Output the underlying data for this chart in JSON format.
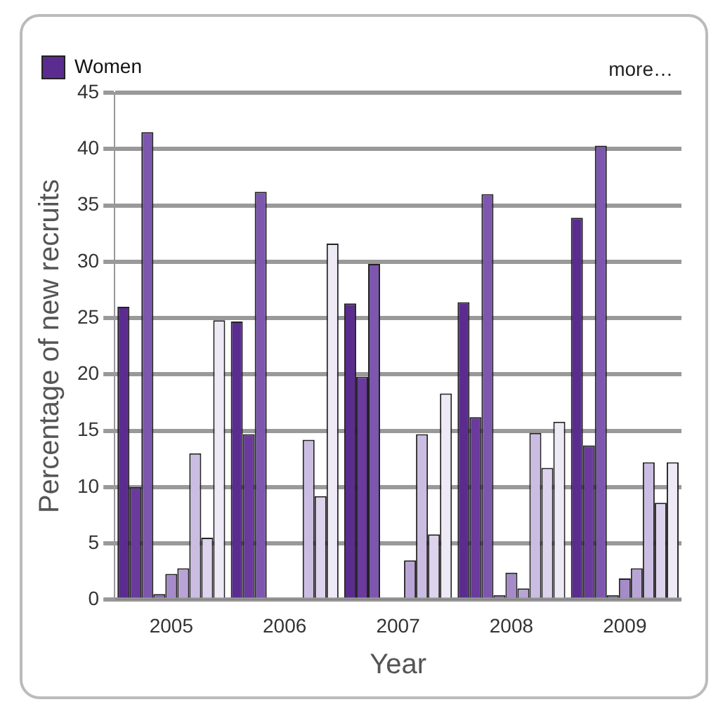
{
  "chart_data": {
    "type": "bar",
    "xlabel": "Year",
    "ylabel": "Percentage of new recruits",
    "categories": [
      "2005",
      "2006",
      "2007",
      "2008",
      "2009"
    ],
    "series": [
      {
        "name": "Women",
        "color": "#5b2c8f",
        "values": [
          26,
          24.7,
          26.3,
          26.4,
          33.9
        ]
      },
      {
        "color": "#6a3a9c",
        "values": [
          10,
          14.7,
          19.8,
          16.2,
          13.7
        ]
      },
      {
        "color": "#7d57ad",
        "values": [
          41.5,
          36.2,
          29.8,
          36,
          40.3
        ]
      },
      {
        "color": "#8e6ab8",
        "values": [
          0.5,
          0,
          0,
          0.4,
          0.4
        ]
      },
      {
        "color": "#a58bc8",
        "values": [
          2.3,
          0,
          0,
          2.4,
          1.9
        ]
      },
      {
        "color": "#b9a5d5",
        "values": [
          2.8,
          0,
          3.5,
          1,
          2.8
        ]
      },
      {
        "color": "#cbbde2",
        "values": [
          13,
          14.2,
          14.7,
          14.8,
          12.2
        ]
      },
      {
        "color": "#ddd3ec",
        "values": [
          5.5,
          9.2,
          5.8,
          11.7,
          8.6
        ]
      },
      {
        "color": "#eeeaf5",
        "values": [
          24.8,
          31.6,
          18.3,
          15.8,
          12.2
        ]
      }
    ],
    "ylim": [
      0,
      45
    ],
    "yticks": [
      0,
      5,
      10,
      15,
      20,
      25,
      30,
      35,
      40,
      45
    ],
    "grid": "y",
    "legend": "top left",
    "annotations": [
      "more…"
    ]
  }
}
